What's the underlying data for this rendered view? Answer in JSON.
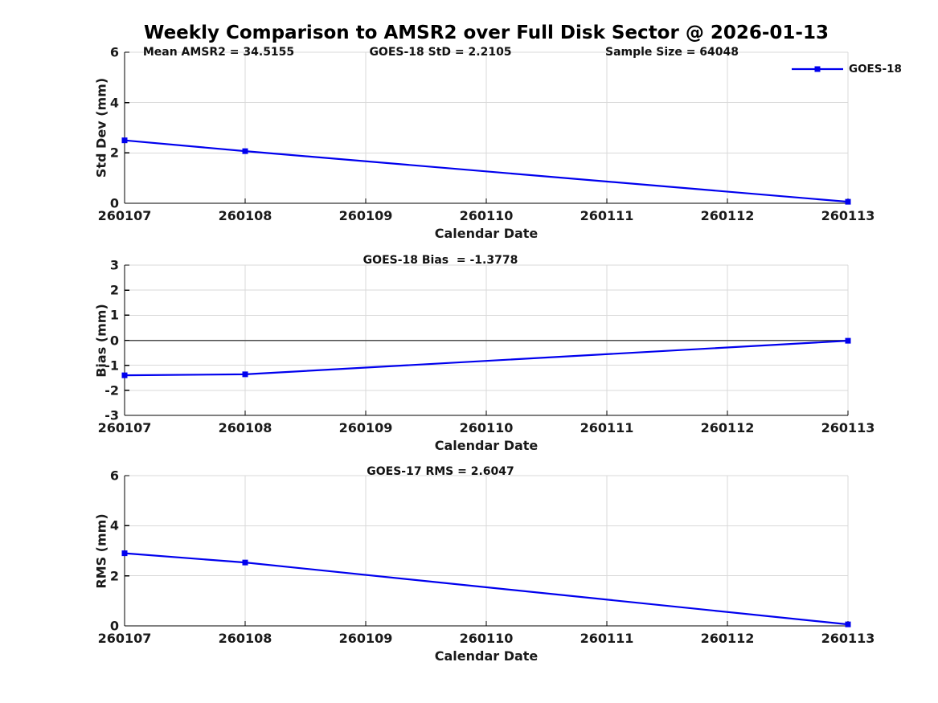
{
  "title": "Weekly Comparison to AMSR2 over Full Disk Sector @ 2026-01-13",
  "legend": {
    "label": "GOES-18"
  },
  "colors": {
    "line": "#0000EE",
    "grid": "#D9D9D9",
    "axis": "#000000",
    "zero_line": "#4D4D4D",
    "text": "#1A1A1A"
  },
  "chart_data": [
    {
      "type": "line",
      "panel": "std-dev",
      "annotations": [
        "Mean AMSR2 = 34.5155",
        "GOES-18 StD = 2.2105",
        "Sample Size = 64048"
      ],
      "ylabel": "Std Dev (mm)",
      "xlabel": "Calendar Date",
      "categories": [
        "260107",
        "260108",
        "260109",
        "260110",
        "260111",
        "260112",
        "260113"
      ],
      "yticks": [
        0,
        2,
        4,
        6
      ],
      "ylim": [
        0,
        6
      ],
      "grid": true,
      "legend_position": "top-right",
      "series": [
        {
          "name": "GOES-18",
          "x": [
            "260107",
            "260108",
            "260113"
          ],
          "values": [
            2.5,
            2.07,
            0.06
          ],
          "marker": "square"
        }
      ]
    },
    {
      "type": "line",
      "panel": "bias",
      "annotations": [
        "GOES-18 Bias  = -1.3778"
      ],
      "ylabel": "Bias (mm)",
      "xlabel": "Calendar Date",
      "categories": [
        "260107",
        "260108",
        "260109",
        "260110",
        "260111",
        "260112",
        "260113"
      ],
      "yticks": [
        -3,
        -2,
        -1,
        0,
        1,
        2,
        3
      ],
      "ylim": [
        -3,
        3
      ],
      "grid": true,
      "zero_line": true,
      "series": [
        {
          "name": "GOES-18",
          "x": [
            "260107",
            "260108",
            "260113"
          ],
          "values": [
            -1.4,
            -1.36,
            -0.02
          ],
          "marker": "square"
        }
      ]
    },
    {
      "type": "line",
      "panel": "rms",
      "annotations": [
        "GOES-17 RMS = 2.6047"
      ],
      "ylabel": "RMS (mm)",
      "xlabel": "Calendar Date",
      "categories": [
        "260107",
        "260108",
        "260109",
        "260110",
        "260111",
        "260112",
        "260113"
      ],
      "yticks": [
        0,
        2,
        4,
        6
      ],
      "ylim": [
        0,
        6
      ],
      "grid": true,
      "series": [
        {
          "name": "GOES-18",
          "x": [
            "260107",
            "260108",
            "260113"
          ],
          "values": [
            2.9,
            2.53,
            0.06
          ],
          "marker": "square"
        }
      ]
    }
  ]
}
